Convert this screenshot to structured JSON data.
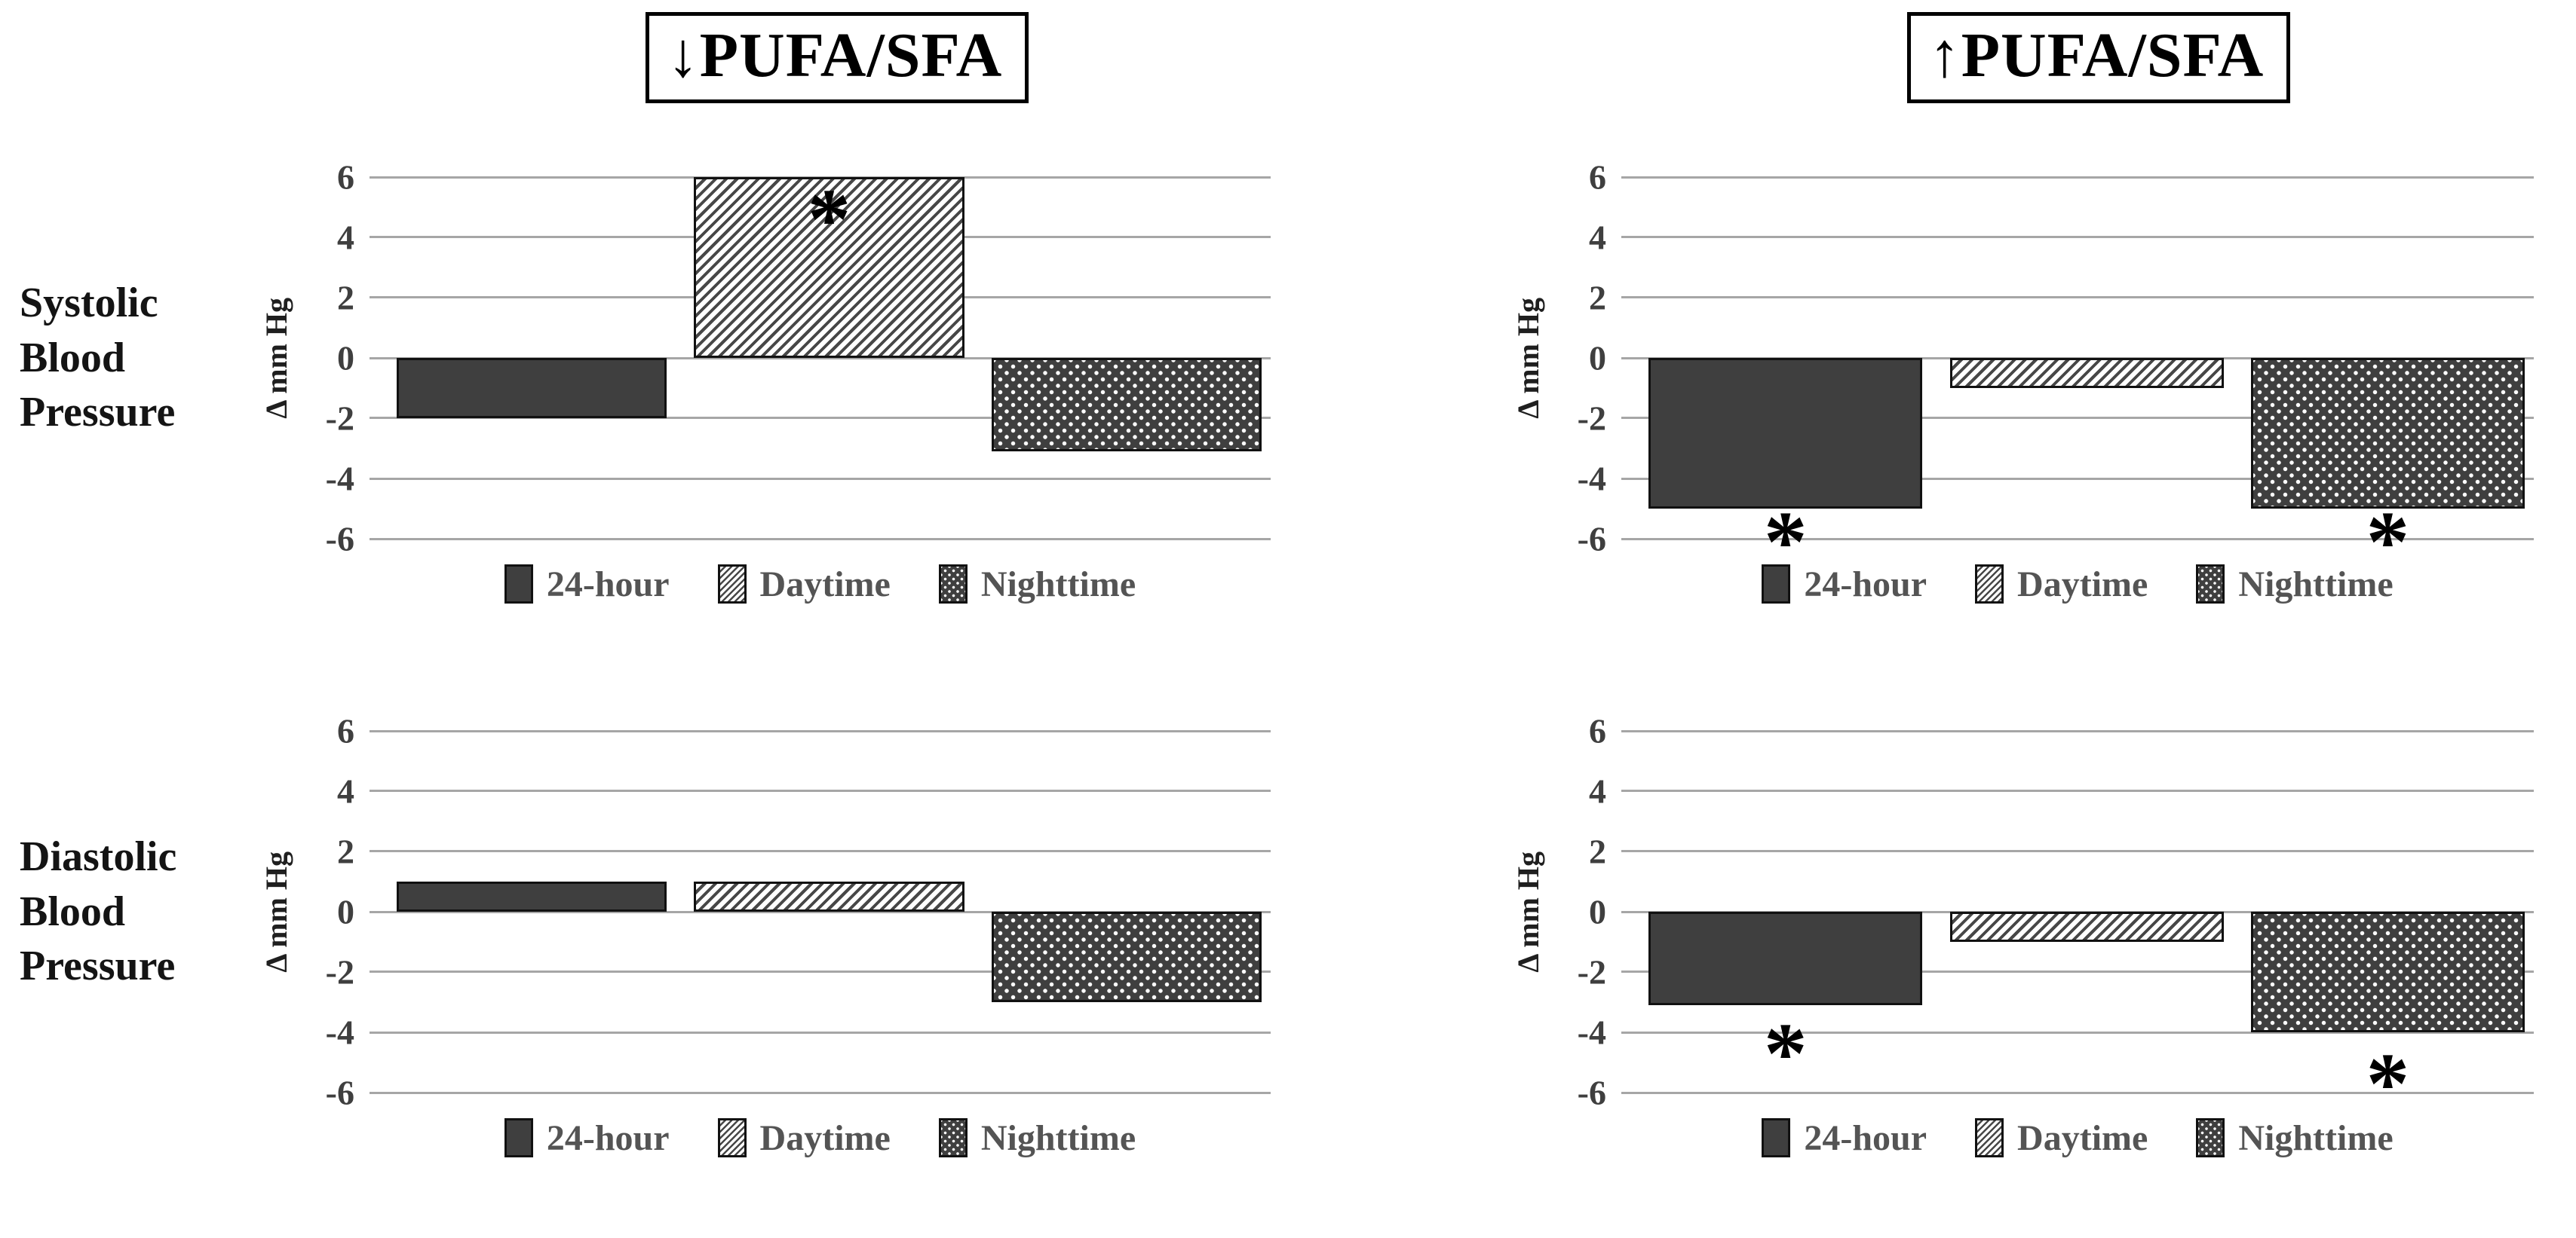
{
  "figure": {
    "columns": [
      {
        "title": "↓PUFA/SFA"
      },
      {
        "title": "↑PUFA/SFA"
      }
    ],
    "row_labels": [
      "Systolic Blood Pressure",
      "Diastolic Blood Pressure"
    ]
  },
  "axis": {
    "label": "Δ mm Hg",
    "ticks": [
      6,
      4,
      2,
      0,
      -2,
      -4,
      -6
    ],
    "ylim": [
      -6,
      6
    ]
  },
  "legend": {
    "items": [
      {
        "label": "24-hour",
        "pattern": "solid"
      },
      {
        "label": "Daytime",
        "pattern": "hatch"
      },
      {
        "label": "Nighttime",
        "pattern": "dots"
      }
    ],
    "position": "bottom"
  },
  "colors": {
    "bar_fill": "#3f3f3f",
    "bar_border": "#111111",
    "gridline": "#a6a6a6",
    "tick_text": "#3f3f3f",
    "legend_text": "#545454",
    "row_label_text": "#141414",
    "title_text": "#000000"
  },
  "chart_data": [
    {
      "type": "bar",
      "title": "Systolic Blood Pressure — ↓PUFA/SFA",
      "categories": [
        "24-hour",
        "Daytime",
        "Nighttime"
      ],
      "values": [
        -2,
        6,
        -3.1
      ],
      "xlabel": "",
      "ylabel": "Δ mm Hg",
      "ylim": [
        -6,
        6
      ],
      "yticks": [
        6,
        4,
        2,
        0,
        -2,
        -4,
        -6
      ],
      "grid": true,
      "legend_position": "bottom",
      "annotations": [
        {
          "text": "*",
          "category": "Daytime",
          "y": 5
        }
      ]
    },
    {
      "type": "bar",
      "title": "Systolic Blood Pressure — ↑PUFA/SFA",
      "categories": [
        "24-hour",
        "Daytime",
        "Nighttime"
      ],
      "values": [
        -5,
        -1,
        -5
      ],
      "xlabel": "",
      "ylabel": "Δ mm Hg",
      "ylim": [
        -6,
        6
      ],
      "yticks": [
        6,
        4,
        2,
        0,
        -2,
        -4,
        -6
      ],
      "grid": true,
      "legend_position": "bottom",
      "annotations": [
        {
          "text": "*",
          "category": "24-hour",
          "y": -5.7
        },
        {
          "text": "*",
          "category": "Nighttime",
          "y": -5.7
        }
      ]
    },
    {
      "type": "bar",
      "title": "Diastolic Blood Pressure — ↓PUFA/SFA",
      "categories": [
        "24-hour",
        "Daytime",
        "Nighttime"
      ],
      "values": [
        1,
        1,
        -3
      ],
      "xlabel": "",
      "ylabel": "Δ mm Hg",
      "ylim": [
        -6,
        6
      ],
      "yticks": [
        6,
        4,
        2,
        0,
        -2,
        -4,
        -6
      ],
      "grid": true,
      "legend_position": "bottom",
      "annotations": []
    },
    {
      "type": "bar",
      "title": "Diastolic Blood Pressure — ↑PUFA/SFA",
      "categories": [
        "24-hour",
        "Daytime",
        "Nighttime"
      ],
      "values": [
        -3.1,
        -1,
        -4
      ],
      "xlabel": "",
      "ylabel": "Δ mm Hg",
      "ylim": [
        -6,
        6
      ],
      "yticks": [
        6,
        4,
        2,
        0,
        -2,
        -4,
        -6
      ],
      "grid": true,
      "legend_position": "bottom",
      "annotations": [
        {
          "text": "*",
          "category": "24-hour",
          "y": -4.3
        },
        {
          "text": "*",
          "category": "Nighttime",
          "y": -5.3
        }
      ]
    }
  ]
}
